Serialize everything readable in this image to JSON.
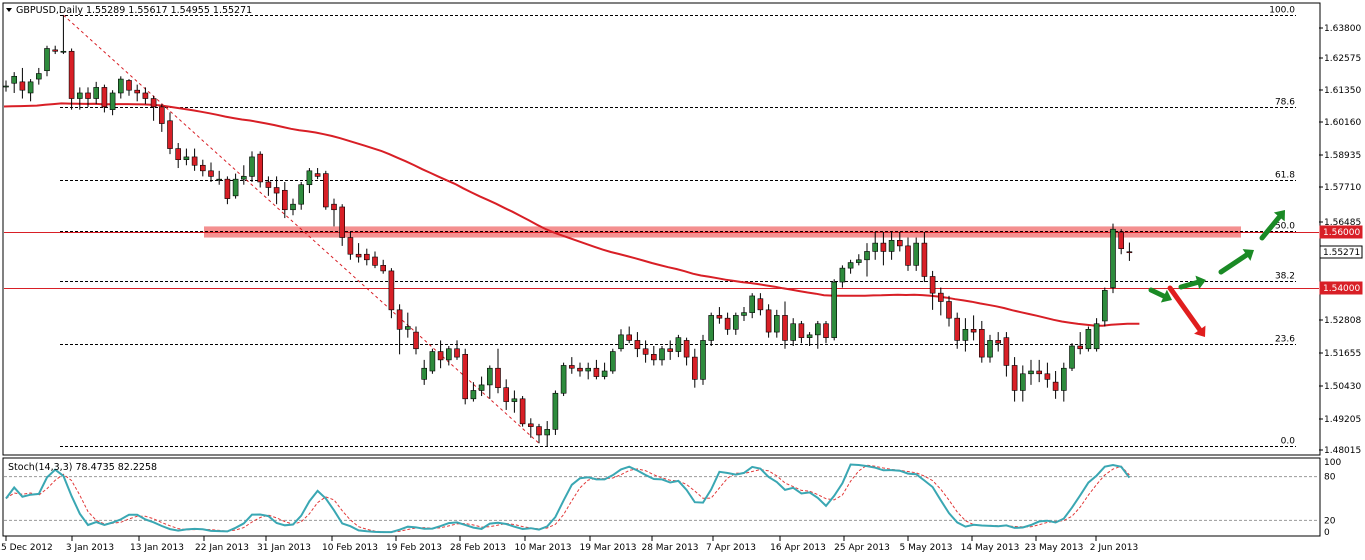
{
  "header": {
    "symbol_line": "GBPUSD,Daily  1.55289 1.55617 1.54955 1.55271"
  },
  "stoch_panel": {
    "label": "Stoch(14,3,3) 78.4735 82.2258",
    "levels": [
      "100",
      "80",
      "20",
      "0"
    ]
  },
  "price_axis": {
    "ticks": [
      "1.63800",
      "1.62575",
      "1.61350",
      "1.60160",
      "1.58935",
      "1.57710",
      "1.56485",
      "1.55271",
      "1.52808",
      "1.51655",
      "1.50430",
      "1.49205",
      "1.48015"
    ],
    "current_price_box": "1.55271",
    "resistance_box": "1.56000",
    "support_box": "1.54000"
  },
  "date_axis": {
    "ticks": [
      "25 Dec 2012",
      "3 Jan 2013",
      "13 Jan 2013",
      "22 Jan 2013",
      "31 Jan 2013",
      "10 Feb 2013",
      "19 Feb 2013",
      "28 Feb 2013",
      "10 Mar 2013",
      "19 Mar 2013",
      "28 Mar 2013",
      "7 Apr 2013",
      "16 Apr 2013",
      "25 Apr 2013",
      "5 May 2013",
      "14 May 2013",
      "23 May 2013",
      "2 Jun 2013"
    ]
  },
  "fibo_levels": [
    "100.0",
    "78.6",
    "61.8",
    "50.0",
    "38.2",
    "23.6",
    "0.0"
  ],
  "colors": {
    "bull": "#2e8b3d",
    "bear": "#d81f26",
    "ma": "#d81f26",
    "stoch_main": "#3aa7b3",
    "stoch_signal": "#e23a3a",
    "zone": "#f27c7c",
    "arrow_up": "#1a8a25",
    "arrow_down": "#e01e1e"
  },
  "chart_data": {
    "type": "candlestick",
    "title": "GBPUSD,Daily",
    "ylim": [
      1.48015,
      1.642
    ],
    "y_ticks": [
      1.638,
      1.62575,
      1.6135,
      1.6016,
      1.58935,
      1.5771,
      1.56485,
      1.52808,
      1.51655,
      1.5043,
      1.49205,
      1.48015
    ],
    "fibonacci": {
      "levels": [
        100.0,
        78.6,
        61.8,
        50.0,
        38.2,
        23.6,
        0.0
      ],
      "high": 1.638,
      "low": 1.483
    },
    "horizontal_lines": [
      1.56,
      1.54
    ],
    "resistance_zone": [
      1.558,
      1.562
    ],
    "moving_average_end": 1.527,
    "candles": [
      {
        "o": 1.6125,
        "h": 1.6145,
        "l": 1.6105,
        "c": 1.6125
      },
      {
        "o": 1.6135,
        "h": 1.6175,
        "l": 1.61,
        "c": 1.616
      },
      {
        "o": 1.614,
        "h": 1.619,
        "l": 1.608,
        "c": 1.611
      },
      {
        "o": 1.61,
        "h": 1.615,
        "l": 1.607,
        "c": 1.614
      },
      {
        "o": 1.615,
        "h": 1.619,
        "l": 1.613,
        "c": 1.617
      },
      {
        "o": 1.618,
        "h": 1.627,
        "l": 1.616,
        "c": 1.626
      },
      {
        "o": 1.6255,
        "h": 1.627,
        "l": 1.624,
        "c": 1.625
      },
      {
        "o": 1.625,
        "h": 1.638,
        "l": 1.624,
        "c": 1.625
      },
      {
        "o": 1.625,
        "h": 1.626,
        "l": 1.604,
        "c": 1.608
      },
      {
        "o": 1.608,
        "h": 1.612,
        "l": 1.604,
        "c": 1.61
      },
      {
        "o": 1.61,
        "h": 1.612,
        "l": 1.605,
        "c": 1.608
      },
      {
        "o": 1.608,
        "h": 1.614,
        "l": 1.606,
        "c": 1.612
      },
      {
        "o": 1.612,
        "h": 1.613,
        "l": 1.603,
        "c": 1.605
      },
      {
        "o": 1.604,
        "h": 1.611,
        "l": 1.602,
        "c": 1.61
      },
      {
        "o": 1.61,
        "h": 1.616,
        "l": 1.608,
        "c": 1.615
      },
      {
        "o": 1.6145,
        "h": 1.615,
        "l": 1.609,
        "c": 1.611
      },
      {
        "o": 1.611,
        "h": 1.613,
        "l": 1.607,
        "c": 1.61
      },
      {
        "o": 1.61,
        "h": 1.612,
        "l": 1.606,
        "c": 1.608
      },
      {
        "o": 1.608,
        "h": 1.609,
        "l": 1.6,
        "c": 1.605
      },
      {
        "o": 1.605,
        "h": 1.606,
        "l": 1.596,
        "c": 1.599
      },
      {
        "o": 1.6,
        "h": 1.603,
        "l": 1.588,
        "c": 1.59
      },
      {
        "o": 1.59,
        "h": 1.592,
        "l": 1.583,
        "c": 1.586
      },
      {
        "o": 1.586,
        "h": 1.59,
        "l": 1.584,
        "c": 1.587
      },
      {
        "o": 1.587,
        "h": 1.59,
        "l": 1.582,
        "c": 1.584
      },
      {
        "o": 1.584,
        "h": 1.586,
        "l": 1.58,
        "c": 1.582
      },
      {
        "o": 1.582,
        "h": 1.585,
        "l": 1.578,
        "c": 1.58
      },
      {
        "o": 1.579,
        "h": 1.582,
        "l": 1.577,
        "c": 1.579
      },
      {
        "o": 1.579,
        "h": 1.58,
        "l": 1.57,
        "c": 1.572
      },
      {
        "o": 1.573,
        "h": 1.581,
        "l": 1.572,
        "c": 1.579
      },
      {
        "o": 1.579,
        "h": 1.584,
        "l": 1.577,
        "c": 1.58
      },
      {
        "o": 1.58,
        "h": 1.589,
        "l": 1.578,
        "c": 1.587
      },
      {
        "o": 1.588,
        "h": 1.589,
        "l": 1.576,
        "c": 1.578
      },
      {
        "o": 1.578,
        "h": 1.58,
        "l": 1.573,
        "c": 1.576
      },
      {
        "o": 1.576,
        "h": 1.58,
        "l": 1.57,
        "c": 1.574
      },
      {
        "o": 1.575,
        "h": 1.578,
        "l": 1.565,
        "c": 1.568
      },
      {
        "o": 1.568,
        "h": 1.572,
        "l": 1.566,
        "c": 1.57
      },
      {
        "o": 1.57,
        "h": 1.578,
        "l": 1.568,
        "c": 1.577
      },
      {
        "o": 1.577,
        "h": 1.583,
        "l": 1.574,
        "c": 1.582
      },
      {
        "o": 1.581,
        "h": 1.583,
        "l": 1.579,
        "c": 1.58
      },
      {
        "o": 1.581,
        "h": 1.582,
        "l": 1.568,
        "c": 1.569
      },
      {
        "o": 1.57,
        "h": 1.572,
        "l": 1.562,
        "c": 1.568
      },
      {
        "o": 1.569,
        "h": 1.57,
        "l": 1.555,
        "c": 1.558
      },
      {
        "o": 1.558,
        "h": 1.56,
        "l": 1.55,
        "c": 1.552
      },
      {
        "o": 1.552,
        "h": 1.556,
        "l": 1.549,
        "c": 1.551
      },
      {
        "o": 1.552,
        "h": 1.554,
        "l": 1.548,
        "c": 1.55
      },
      {
        "o": 1.551,
        "h": 1.553,
        "l": 1.547,
        "c": 1.548
      },
      {
        "o": 1.548,
        "h": 1.55,
        "l": 1.545,
        "c": 1.546
      },
      {
        "o": 1.546,
        "h": 1.547,
        "l": 1.529,
        "c": 1.532
      },
      {
        "o": 1.532,
        "h": 1.534,
        "l": 1.516,
        "c": 1.525
      },
      {
        "o": 1.525,
        "h": 1.531,
        "l": 1.522,
        "c": 1.526
      },
      {
        "o": 1.524,
        "h": 1.526,
        "l": 1.516,
        "c": 1.518
      },
      {
        "o": 1.507,
        "h": 1.514,
        "l": 1.505,
        "c": 1.511
      },
      {
        "o": 1.51,
        "h": 1.518,
        "l": 1.509,
        "c": 1.517
      },
      {
        "o": 1.517,
        "h": 1.521,
        "l": 1.511,
        "c": 1.514
      },
      {
        "o": 1.514,
        "h": 1.519,
        "l": 1.512,
        "c": 1.518
      },
      {
        "o": 1.518,
        "h": 1.521,
        "l": 1.514,
        "c": 1.515
      },
      {
        "o": 1.516,
        "h": 1.518,
        "l": 1.498,
        "c": 1.5
      },
      {
        "o": 1.5,
        "h": 1.506,
        "l": 1.499,
        "c": 1.503
      },
      {
        "o": 1.503,
        "h": 1.508,
        "l": 1.501,
        "c": 1.505
      },
      {
        "o": 1.505,
        "h": 1.512,
        "l": 1.5,
        "c": 1.511
      },
      {
        "o": 1.511,
        "h": 1.518,
        "l": 1.502,
        "c": 1.504
      },
      {
        "o": 1.504,
        "h": 1.507,
        "l": 1.496,
        "c": 1.499
      },
      {
        "o": 1.499,
        "h": 1.503,
        "l": 1.495,
        "c": 1.5
      },
      {
        "o": 1.5,
        "h": 1.501,
        "l": 1.49,
        "c": 1.491
      },
      {
        "o": 1.491,
        "h": 1.493,
        "l": 1.486,
        "c": 1.49
      },
      {
        "o": 1.49,
        "h": 1.491,
        "l": 1.484,
        "c": 1.487
      },
      {
        "o": 1.487,
        "h": 1.492,
        "l": 1.483,
        "c": 1.489
      },
      {
        "o": 1.489,
        "h": 1.503,
        "l": 1.487,
        "c": 1.502
      },
      {
        "o": 1.502,
        "h": 1.513,
        "l": 1.501,
        "c": 1.512
      },
      {
        "o": 1.512,
        "h": 1.515,
        "l": 1.509,
        "c": 1.511
      },
      {
        "o": 1.511,
        "h": 1.513,
        "l": 1.508,
        "c": 1.51
      },
      {
        "o": 1.51,
        "h": 1.513,
        "l": 1.507,
        "c": 1.511
      },
      {
        "o": 1.511,
        "h": 1.514,
        "l": 1.507,
        "c": 1.508
      },
      {
        "o": 1.508,
        "h": 1.513,
        "l": 1.507,
        "c": 1.51
      },
      {
        "o": 1.51,
        "h": 1.518,
        "l": 1.509,
        "c": 1.517
      },
      {
        "o": 1.518,
        "h": 1.525,
        "l": 1.517,
        "c": 1.523
      },
      {
        "o": 1.523,
        "h": 1.526,
        "l": 1.52,
        "c": 1.521
      },
      {
        "o": 1.521,
        "h": 1.524,
        "l": 1.515,
        "c": 1.518
      },
      {
        "o": 1.518,
        "h": 1.521,
        "l": 1.513,
        "c": 1.516
      },
      {
        "o": 1.516,
        "h": 1.519,
        "l": 1.512,
        "c": 1.514
      },
      {
        "o": 1.514,
        "h": 1.519,
        "l": 1.512,
        "c": 1.518
      },
      {
        "o": 1.518,
        "h": 1.521,
        "l": 1.514,
        "c": 1.517
      },
      {
        "o": 1.517,
        "h": 1.523,
        "l": 1.515,
        "c": 1.522
      },
      {
        "o": 1.521,
        "h": 1.522,
        "l": 1.512,
        "c": 1.515
      },
      {
        "o": 1.515,
        "h": 1.518,
        "l": 1.504,
        "c": 1.507
      },
      {
        "o": 1.507,
        "h": 1.523,
        "l": 1.505,
        "c": 1.521
      },
      {
        "o": 1.521,
        "h": 1.531,
        "l": 1.519,
        "c": 1.53
      },
      {
        "o": 1.53,
        "h": 1.533,
        "l": 1.527,
        "c": 1.529
      },
      {
        "o": 1.529,
        "h": 1.531,
        "l": 1.523,
        "c": 1.525
      },
      {
        "o": 1.525,
        "h": 1.531,
        "l": 1.523,
        "c": 1.53
      },
      {
        "o": 1.53,
        "h": 1.533,
        "l": 1.528,
        "c": 1.531
      },
      {
        "o": 1.531,
        "h": 1.538,
        "l": 1.529,
        "c": 1.537
      },
      {
        "o": 1.536,
        "h": 1.538,
        "l": 1.53,
        "c": 1.532
      },
      {
        "o": 1.532,
        "h": 1.534,
        "l": 1.522,
        "c": 1.524
      },
      {
        "o": 1.524,
        "h": 1.532,
        "l": 1.522,
        "c": 1.53
      },
      {
        "o": 1.53,
        "h": 1.535,
        "l": 1.518,
        "c": 1.521
      },
      {
        "o": 1.521,
        "h": 1.529,
        "l": 1.519,
        "c": 1.527
      },
      {
        "o": 1.527,
        "h": 1.528,
        "l": 1.52,
        "c": 1.522
      },
      {
        "o": 1.522,
        "h": 1.524,
        "l": 1.519,
        "c": 1.523
      },
      {
        "o": 1.523,
        "h": 1.528,
        "l": 1.518,
        "c": 1.527
      },
      {
        "o": 1.527,
        "h": 1.528,
        "l": 1.52,
        "c": 1.522
      },
      {
        "o": 1.522,
        "h": 1.543,
        "l": 1.521,
        "c": 1.542
      },
      {
        "o": 1.542,
        "h": 1.548,
        "l": 1.54,
        "c": 1.547
      },
      {
        "o": 1.547,
        "h": 1.55,
        "l": 1.545,
        "c": 1.549
      },
      {
        "o": 1.549,
        "h": 1.552,
        "l": 1.548,
        "c": 1.55
      },
      {
        "o": 1.55,
        "h": 1.556,
        "l": 1.544,
        "c": 1.553
      },
      {
        "o": 1.553,
        "h": 1.56,
        "l": 1.55,
        "c": 1.556
      },
      {
        "o": 1.556,
        "h": 1.56,
        "l": 1.548,
        "c": 1.553
      },
      {
        "o": 1.553,
        "h": 1.56,
        "l": 1.55,
        "c": 1.557
      },
      {
        "o": 1.557,
        "h": 1.56,
        "l": 1.553,
        "c": 1.555
      },
      {
        "o": 1.555,
        "h": 1.558,
        "l": 1.546,
        "c": 1.548
      },
      {
        "o": 1.548,
        "h": 1.558,
        "l": 1.546,
        "c": 1.556
      },
      {
        "o": 1.556,
        "h": 1.56,
        "l": 1.542,
        "c": 1.544
      },
      {
        "o": 1.544,
        "h": 1.546,
        "l": 1.532,
        "c": 1.538
      },
      {
        "o": 1.538,
        "h": 1.54,
        "l": 1.53,
        "c": 1.535
      },
      {
        "o": 1.535,
        "h": 1.537,
        "l": 1.526,
        "c": 1.529
      },
      {
        "o": 1.529,
        "h": 1.531,
        "l": 1.518,
        "c": 1.521
      },
      {
        "o": 1.521,
        "h": 1.529,
        "l": 1.517,
        "c": 1.525
      },
      {
        "o": 1.525,
        "h": 1.53,
        "l": 1.521,
        "c": 1.524
      },
      {
        "o": 1.525,
        "h": 1.528,
        "l": 1.513,
        "c": 1.515
      },
      {
        "o": 1.515,
        "h": 1.523,
        "l": 1.513,
        "c": 1.521
      },
      {
        "o": 1.521,
        "h": 1.524,
        "l": 1.517,
        "c": 1.52
      },
      {
        "o": 1.522,
        "h": 1.524,
        "l": 1.508,
        "c": 1.512
      },
      {
        "o": 1.512,
        "h": 1.515,
        "l": 1.499,
        "c": 1.503
      },
      {
        "o": 1.503,
        "h": 1.512,
        "l": 1.499,
        "c": 1.509
      },
      {
        "o": 1.509,
        "h": 1.514,
        "l": 1.505,
        "c": 1.51
      },
      {
        "o": 1.51,
        "h": 1.514,
        "l": 1.506,
        "c": 1.509
      },
      {
        "o": 1.509,
        "h": 1.513,
        "l": 1.504,
        "c": 1.507
      },
      {
        "o": 1.506,
        "h": 1.51,
        "l": 1.5,
        "c": 1.503
      },
      {
        "o": 1.503,
        "h": 1.513,
        "l": 1.499,
        "c": 1.511
      },
      {
        "o": 1.511,
        "h": 1.52,
        "l": 1.51,
        "c": 1.519
      },
      {
        "o": 1.519,
        "h": 1.524,
        "l": 1.516,
        "c": 1.518
      },
      {
        "o": 1.518,
        "h": 1.526,
        "l": 1.517,
        "c": 1.525
      },
      {
        "o": 1.518,
        "h": 1.529,
        "l": 1.517,
        "c": 1.527
      },
      {
        "o": 1.528,
        "h": 1.54,
        "l": 1.526,
        "c": 1.539
      },
      {
        "o": 1.54,
        "h": 1.563,
        "l": 1.538,
        "c": 1.561
      },
      {
        "o": 1.56,
        "h": 1.561,
        "l": 1.552,
        "c": 1.554
      },
      {
        "o": 1.5529,
        "h": 1.5562,
        "l": 1.5496,
        "c": 1.5527
      }
    ],
    "stochastic": {
      "name": "Stoch(14,3,3)",
      "main": 78.4735,
      "signal": 82.2258,
      "levels": [
        20,
        80
      ],
      "ylim": [
        0,
        100
      ]
    }
  }
}
